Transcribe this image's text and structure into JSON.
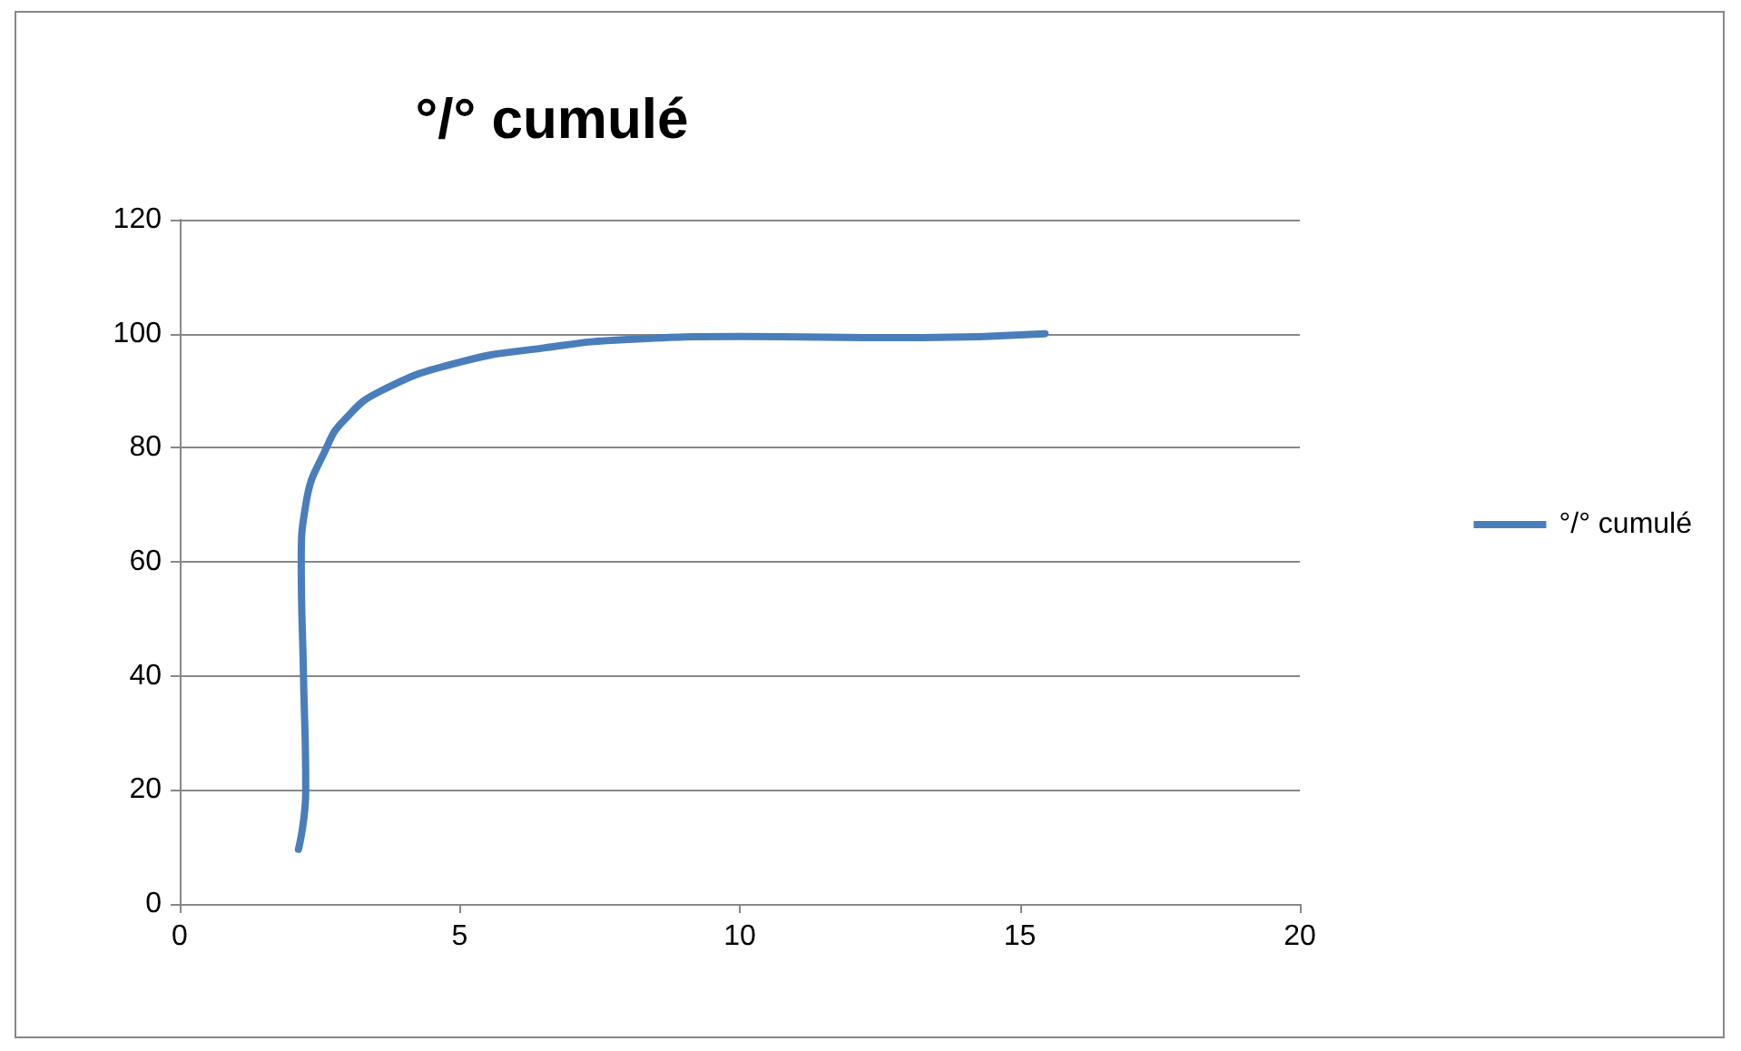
{
  "chart_data": {
    "type": "line",
    "title": "°/° cumulé",
    "x": [
      2.12,
      2.25,
      2.21,
      2.17,
      2.25,
      2.62,
      2.95,
      3.6,
      5.0,
      6.5,
      8.0,
      10.0,
      13.0,
      15.45
    ],
    "series": [
      {
        "name": "°/° cumulé",
        "color": "#4a7ebb",
        "values": [
          9.6,
          20,
          40,
          60,
          70,
          80,
          85,
          90,
          95,
          97.5,
          99,
          99.5,
          99.3,
          100
        ]
      }
    ],
    "xlim": [
      0,
      20
    ],
    "xticks": [
      0,
      5,
      10,
      15,
      20
    ],
    "ylim": [
      0,
      120
    ],
    "yticks": [
      0,
      20,
      40,
      60,
      80,
      100,
      120
    ],
    "grid": "y",
    "legend": "right",
    "marker": "none",
    "line_style": "solid"
  }
}
